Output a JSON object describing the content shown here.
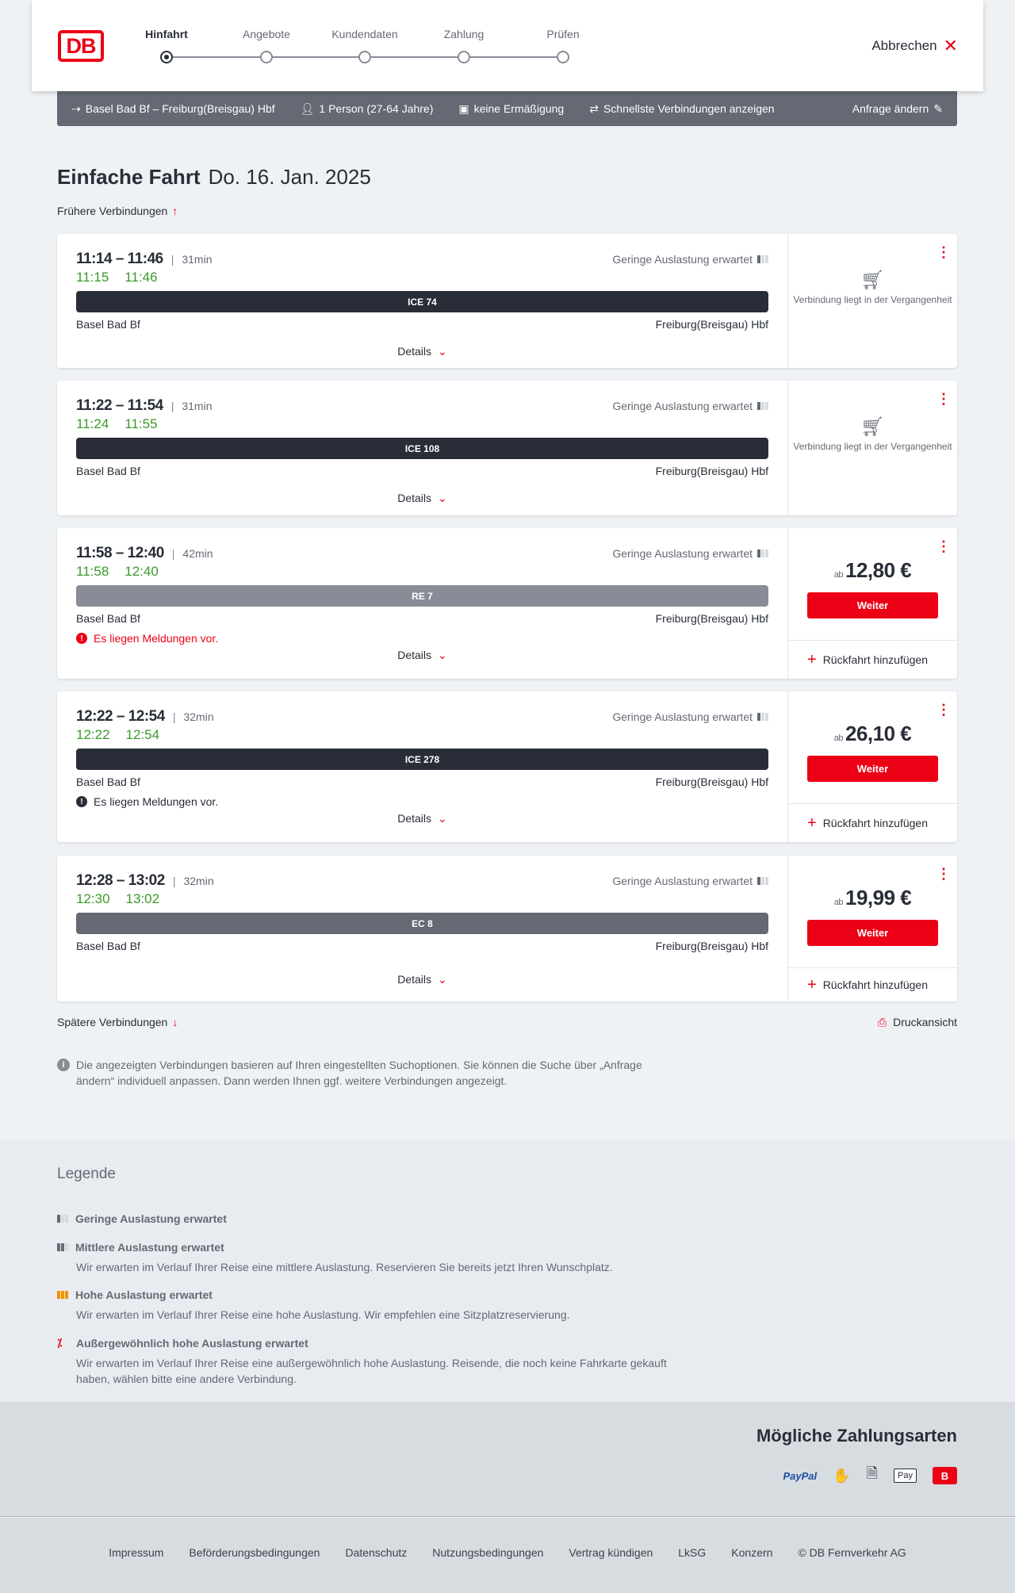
{
  "header": {
    "logo": "DB",
    "steps": [
      {
        "label": "Hinfahrt",
        "active": true
      },
      {
        "label": "Angebote"
      },
      {
        "label": "Kundendaten"
      },
      {
        "label": "Zahlung"
      },
      {
        "label": "Prüfen"
      }
    ],
    "cancel": "Abbrechen"
  },
  "query": {
    "route": "Basel Bad Bf – Freiburg(Breisgau) Hbf",
    "passengers": "1 Person (27-64 Jahre)",
    "discount": "keine Ermäßigung",
    "filter": "Schnellste Verbindungen anzeigen",
    "change": "Anfrage ändern"
  },
  "title": {
    "type": "Einfache Fahrt",
    "date": "Do. 16. Jan. 2025"
  },
  "earlier": "Frühere Verbindungen",
  "later": "Spätere Verbindungen",
  "print": "Druckansicht",
  "details_label": "Details",
  "load_label": "Geringe Auslastung erwartet",
  "from": "Basel Bad Bf",
  "to": "Freiburg(Breisgau) Hbf",
  "past_text": "Verbindung liegt in der Vergangenheit",
  "price_prefix": "ab",
  "weiter": "Weiter",
  "return": "Rückfahrt hinzufügen",
  "colors": {
    "accent": "#ec0016",
    "realtime": "#3a9a2a",
    "ice": "#282d37",
    "re": "#878c96",
    "ec": "#646973"
  },
  "connections": [
    {
      "times": "11:14 – 11:46",
      "duration": "31min",
      "rt_dep": "11:15",
      "rt_arr": "11:46",
      "train": "ICE 74",
      "past": true
    },
    {
      "times": "11:22 – 11:54",
      "duration": "31min",
      "rt_dep": "11:24",
      "rt_arr": "11:55",
      "train": "ICE 108",
      "past": true
    },
    {
      "times": "11:58 – 12:40",
      "duration": "42min",
      "rt_dep": "11:58",
      "rt_arr": "12:40",
      "train": "RE 7",
      "message": "Es liegen Meldungen vor.",
      "message_color": "#ec0016",
      "price": "12,80 €"
    },
    {
      "times": "12:22 – 12:54",
      "duration": "32min",
      "rt_dep": "12:22",
      "rt_arr": "12:54",
      "train": "ICE 278",
      "message": "Es liegen Meldungen vor.",
      "message_color": "#282d37",
      "price": "26,10 €"
    },
    {
      "times": "12:28 – 13:02",
      "duration": "32min",
      "rt_dep": "12:30",
      "rt_arr": "13:02",
      "train": "EC 8",
      "price": "19,99 €"
    }
  ],
  "info": "Die angezeigten Verbindungen basieren auf Ihren eingestellten Suchoptionen. Sie können die Suche über „Anfrage ändern“ individuell anpassen. Dann werden Ihnen ggf. weitere Verbindungen angezeigt.",
  "legend": {
    "title": "Legende",
    "items": [
      {
        "title": "Geringe Auslastung erwartet",
        "text": ""
      },
      {
        "title": "Mittlere Auslastung erwartet",
        "text": "Wir erwarten im Verlauf Ihrer Reise eine mittlere Auslastung. Reservieren Sie bereits jetzt Ihren Wunschplatz."
      },
      {
        "title": "Hohe Auslastung erwartet",
        "text": "Wir erwarten im Verlauf Ihrer Reise eine hohe Auslastung. Wir empfehlen eine Sitzplatzreservierung."
      },
      {
        "title": "Außergewöhnlich hohe Auslastung erwartet",
        "text": "Wir erwarten im Verlauf Ihrer Reise eine außergewöhnlich hohe Auslastung. Reisende, die noch keine Fahrkarte gekauft haben, wählen bitte eine andere Verbindung."
      }
    ]
  },
  "payments": {
    "title": "Mögliche Zahlungsarten",
    "paypal": "PayPal",
    "applepay": "Pay",
    "icons": [
      "paypal-icon",
      "card-icon",
      "sepa-icon",
      "apple-pay-icon",
      "db-pay-icon"
    ]
  },
  "footer": [
    "Impressum",
    "Beförderungsbedingungen",
    "Datenschutz",
    "Nutzungsbedingungen",
    "Vertrag kündigen",
    "LkSG",
    "Konzern",
    "© DB Fernverkehr AG"
  ]
}
